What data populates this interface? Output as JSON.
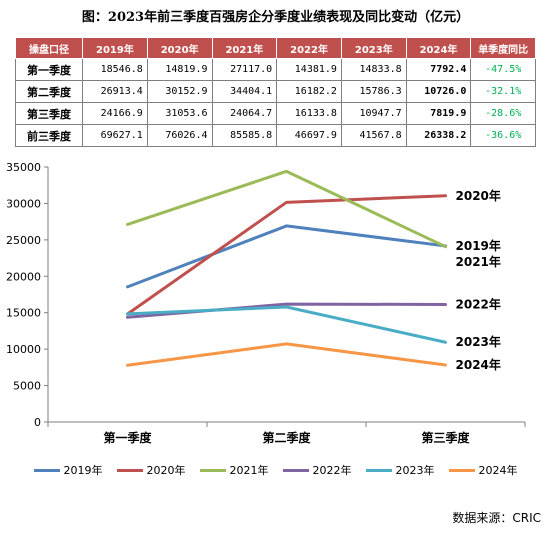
{
  "title": "图：2023年前三季度百强房企分季度业绩表现及同比变动（亿元）",
  "table": {
    "headers": [
      "操盘口径",
      "2019年",
      "2020年",
      "2021年",
      "2022年",
      "2023年",
      "2024年",
      "单季度同比"
    ],
    "rows": [
      [
        "第一季度",
        "18546.8",
        "14819.9",
        "27117.0",
        "14381.9",
        "14833.8",
        "7792.4",
        "-47.5%"
      ],
      [
        "第二季度",
        "26913.4",
        "30152.9",
        "34404.1",
        "16182.2",
        "15786.3",
        "10726.0",
        "-32.1%"
      ],
      [
        "第三季度",
        "24166.9",
        "31053.6",
        "24064.7",
        "16133.8",
        "10947.7",
        "7819.9",
        "-28.6%"
      ],
      [
        "前三季度",
        "69627.1",
        "76026.4",
        "85585.8",
        "46697.9",
        "41567.8",
        "26338.2",
        "-36.6%"
      ]
    ]
  },
  "chart_data": {
    "type": "line",
    "categories": [
      "第一季度",
      "第二季度",
      "第三季度"
    ],
    "ylim": [
      0,
      35000
    ],
    "yticks": [
      "0",
      "5000",
      "10000",
      "15000",
      "20000",
      "25000",
      "30000",
      "35000"
    ],
    "series": [
      {
        "name": "2019年",
        "values": [
          18546.8,
          26913.4,
          24166.9
        ],
        "color": "#4f81bd",
        "label": "2019年"
      },
      {
        "name": "2020年",
        "values": [
          14819.9,
          30152.9,
          31053.6
        ],
        "color": "#c0504d",
        "label": "2020年"
      },
      {
        "name": "2021年",
        "values": [
          27117.0,
          34404.1,
          24064.7
        ],
        "color": "#9bbb59",
        "label": "2021年"
      },
      {
        "name": "2022年",
        "values": [
          14381.9,
          16182.2,
          16133.8
        ],
        "color": "#8064a2",
        "label": "2022年"
      },
      {
        "name": "2023年",
        "values": [
          14833.8,
          15786.3,
          10947.7
        ],
        "color": "#4bacc6",
        "label": "2023年"
      },
      {
        "name": "2024年",
        "values": [
          7792.4,
          10726.0,
          7819.9
        ],
        "color": "#f79646",
        "label": "2024年"
      }
    ],
    "legend_position": "bottom",
    "grid": false
  },
  "source": "数据来源：CRIC"
}
